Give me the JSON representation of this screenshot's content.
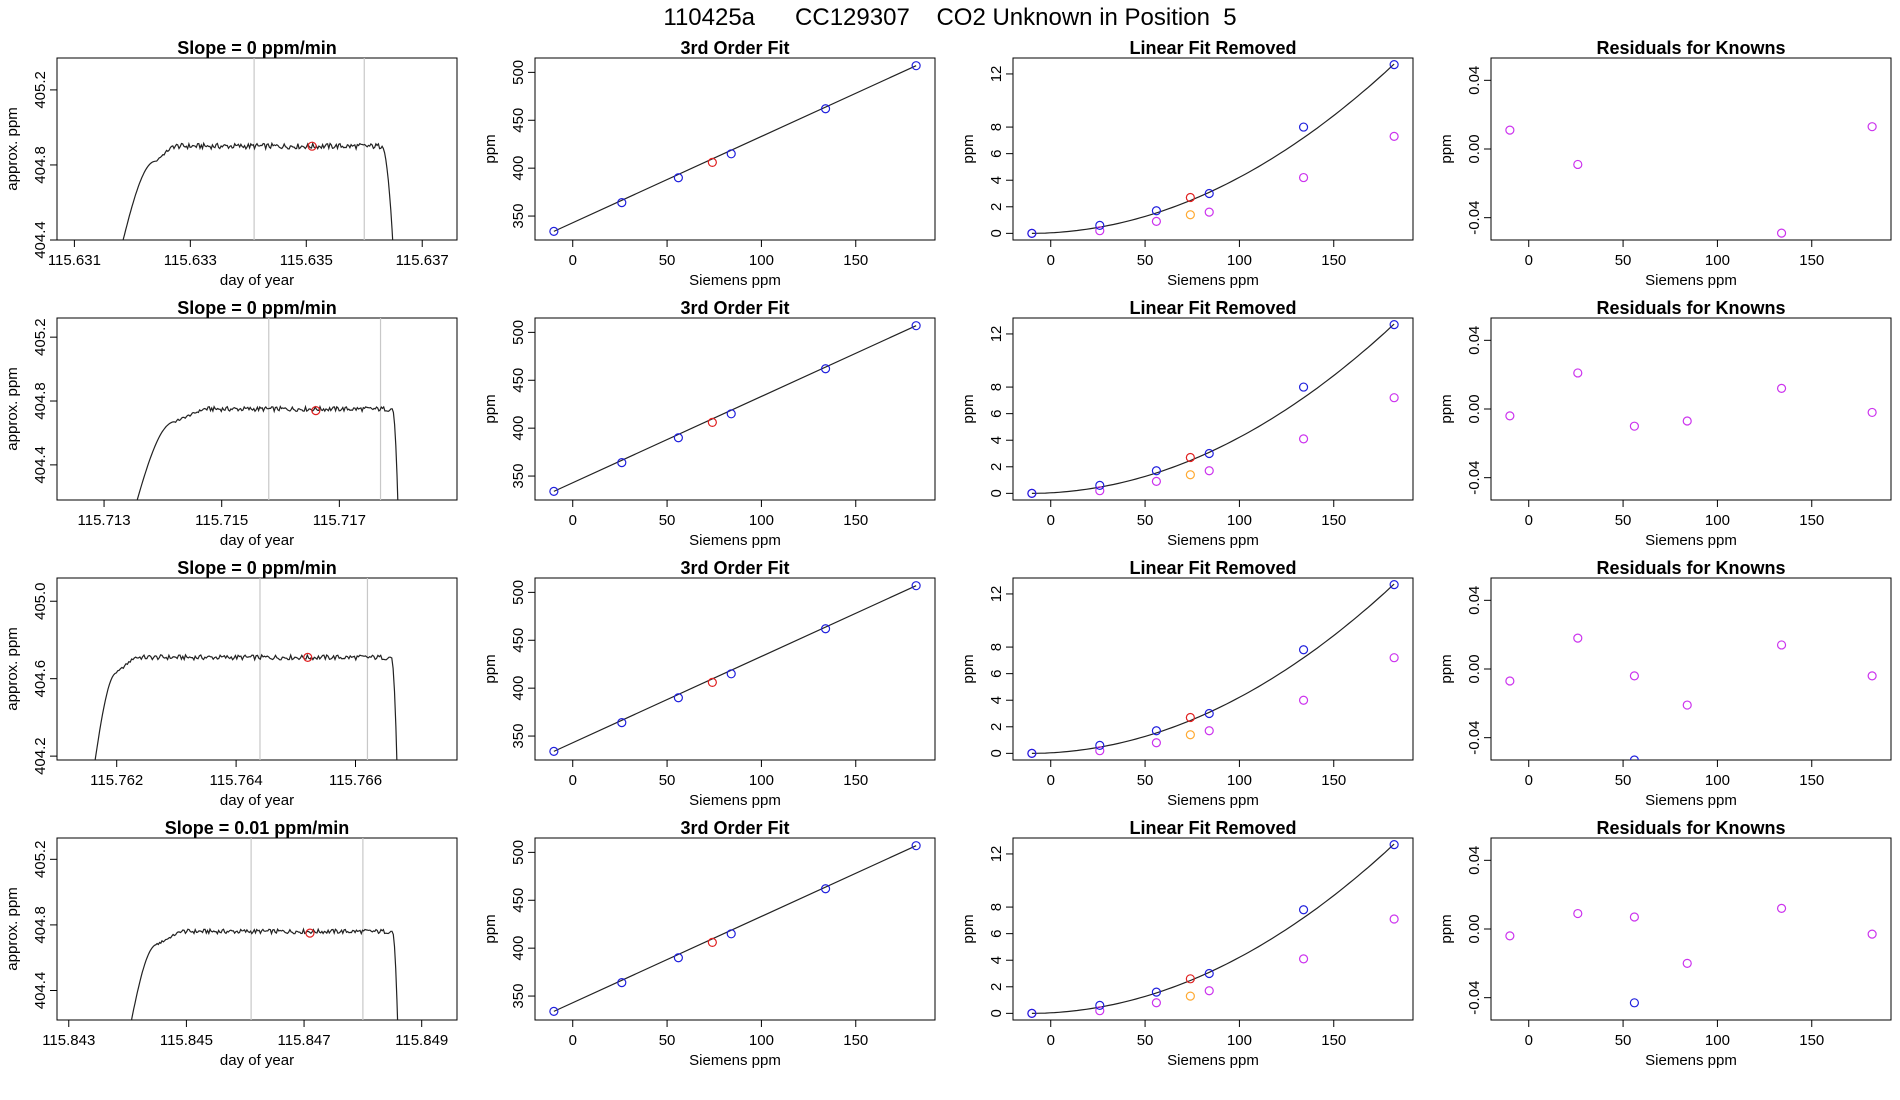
{
  "page": {
    "title": "110425a      CC129307    CO2 Unknown in Position  5"
  },
  "colors": {
    "trace": "#222222",
    "window_lines": "#c8c8c8",
    "unknown_point": "#e02020",
    "known_point": "#2020dd",
    "linear_removed_point": "#cc33ee",
    "unknown_linear_removed_point": "#ffaa33",
    "residual_point": "#cc33ee",
    "fit_line": "#222222",
    "axis": "#000000"
  },
  "chart_data": [
    {
      "id": "r1-time",
      "type": "line",
      "title": "Slope =  0  ppm/min",
      "xlabel": "day of year",
      "ylabel": "approx. ppm",
      "xlim": [
        115.6307,
        115.6376
      ],
      "ylim": [
        404.4,
        405.37
      ],
      "xticks": [
        "115.631",
        "115.633",
        "115.635",
        "115.637"
      ],
      "xtick_values": [
        115.631,
        115.633,
        115.635,
        115.637
      ],
      "yticks": [
        "404.4",
        "404.8",
        "405.2"
      ],
      "ytick_values": [
        404.4,
        404.8,
        405.2
      ],
      "window": [
        115.6341,
        115.636
      ],
      "trace": {
        "start": 115.6318,
        "rise_end": 115.6324,
        "plateau_start": 115.6327,
        "plateau_end": 115.6363,
        "drop_end": 115.6365,
        "baseline": 404.35,
        "level": 404.9,
        "wobble": 0.015
      },
      "marker": {
        "x": 115.6351,
        "y": 404.9
      }
    },
    {
      "id": "r1-cubic",
      "type": "scatter",
      "title": "3rd Order Fit",
      "xlabel": "Siemens ppm",
      "ylabel": "ppm",
      "xlim": [
        -20,
        192
      ],
      "ylim": [
        325,
        515
      ],
      "xticks": [
        "0",
        "50",
        "100",
        "150"
      ],
      "xtick_values": [
        0,
        50,
        100,
        150
      ],
      "yticks": [
        "350",
        "400",
        "450",
        "500"
      ],
      "ytick_values": [
        350,
        400,
        450,
        500
      ],
      "fit_line": {
        "x": [
          -10,
          182
        ],
        "y": [
          334,
          507
        ]
      },
      "knowns": {
        "x": [
          -10,
          26,
          56,
          84,
          134,
          182
        ],
        "y": [
          334,
          364,
          390,
          415,
          462,
          507
        ]
      },
      "unknown": {
        "x": 74,
        "y": 406
      }
    },
    {
      "id": "r1-lin",
      "type": "scatter",
      "title": "Linear Fit Removed",
      "xlabel": "Siemens ppm",
      "ylabel": "ppm",
      "xlim": [
        -20,
        192
      ],
      "ylim": [
        -0.5,
        13.2
      ],
      "xticks": [
        "0",
        "50",
        "100",
        "150"
      ],
      "xtick_values": [
        0,
        50,
        100,
        150
      ],
      "yticks": [
        "0",
        "2",
        "4",
        "6",
        "8",
        "12"
      ],
      "ytick_values": [
        0,
        2,
        4,
        6,
        8,
        12
      ],
      "curve": {
        "x0": -10,
        "x1": 182,
        "a": 0.000342,
        "b": 0.00071,
        "c": 0
      },
      "knowns": {
        "x": [
          -10,
          26,
          56,
          84,
          134,
          182
        ],
        "y": [
          0,
          0.6,
          1.7,
          3.0,
          8.0,
          12.7
        ]
      },
      "knowns_removed": {
        "x": [
          -10,
          26,
          56,
          84,
          134,
          182
        ],
        "y": [
          0,
          0.2,
          0.9,
          1.6,
          4.2,
          7.3
        ]
      },
      "unknown": {
        "x": 74,
        "y": 2.7
      },
      "unknown_removed": {
        "x": 74,
        "y": 1.4
      }
    },
    {
      "id": "r1-res",
      "type": "scatter",
      "title": "Residuals for Knowns",
      "xlabel": "Siemens ppm",
      "ylabel": "ppm",
      "xlim": [
        -20,
        192
      ],
      "ylim": [
        -0.053,
        0.053
      ],
      "xticks": [
        "0",
        "50",
        "100",
        "150"
      ],
      "xtick_values": [
        0,
        50,
        100,
        150
      ],
      "yticks": [
        "-0.04",
        "0.00",
        "0.04"
      ],
      "ytick_values": [
        -0.04,
        0.0,
        0.04
      ],
      "residuals": {
        "x": [
          -10,
          26,
          134,
          182
        ],
        "y": [
          0.011,
          -0.009,
          -0.049,
          0.013
        ]
      },
      "known_residuals": {
        "x": [],
        "y": []
      }
    },
    {
      "id": "r2-time",
      "type": "line",
      "title": "Slope =  0  ppm/min",
      "xlabel": "day of year",
      "ylabel": "approx. ppm",
      "xlim": [
        115.7122,
        115.719
      ],
      "ylim": [
        404.18,
        405.32
      ],
      "xticks": [
        "115.713",
        "115.715",
        "115.717"
      ],
      "xtick_values": [
        115.713,
        115.715,
        115.717
      ],
      "yticks": [
        "404.4",
        "404.8",
        "405.2"
      ],
      "ytick_values": [
        404.4,
        404.8,
        405.2
      ],
      "window": [
        115.7158,
        115.7177
      ],
      "trace": {
        "start": 115.7135,
        "rise_end": 115.7142,
        "plateau_start": 115.7147,
        "plateau_end": 115.7179,
        "drop_end": 115.718,
        "baseline": 404.1,
        "level": 404.75,
        "wobble": 0.015
      },
      "marker": {
        "x": 115.7166,
        "y": 404.74
      }
    },
    {
      "id": "r2-cubic",
      "type": "scatter",
      "title": "3rd Order Fit",
      "xlabel": "Siemens ppm",
      "ylabel": "ppm",
      "xlim": [
        -20,
        192
      ],
      "ylim": [
        325,
        515
      ],
      "xticks": [
        "0",
        "50",
        "100",
        "150"
      ],
      "xtick_values": [
        0,
        50,
        100,
        150
      ],
      "yticks": [
        "350",
        "400",
        "450",
        "500"
      ],
      "ytick_values": [
        350,
        400,
        450,
        500
      ],
      "fit_line": {
        "x": [
          -10,
          182
        ],
        "y": [
          334,
          507
        ]
      },
      "knowns": {
        "x": [
          -10,
          26,
          56,
          84,
          134,
          182
        ],
        "y": [
          334,
          364,
          390,
          415,
          462,
          507
        ]
      },
      "unknown": {
        "x": 74,
        "y": 406
      }
    },
    {
      "id": "r2-lin",
      "type": "scatter",
      "title": "Linear Fit Removed",
      "xlabel": "Siemens ppm",
      "ylabel": "ppm",
      "xlim": [
        -20,
        192
      ],
      "ylim": [
        -0.5,
        13.2
      ],
      "xticks": [
        "0",
        "50",
        "100",
        "150"
      ],
      "xtick_values": [
        0,
        50,
        100,
        150
      ],
      "yticks": [
        "0",
        "2",
        "4",
        "6",
        "8",
        "12"
      ],
      "ytick_values": [
        0,
        2,
        4,
        6,
        8,
        12
      ],
      "curve": {
        "x0": -10,
        "x1": 182,
        "a": 0.000342,
        "b": 0.00071,
        "c": 0
      },
      "knowns": {
        "x": [
          -10,
          26,
          56,
          84,
          134,
          182
        ],
        "y": [
          0,
          0.6,
          1.7,
          3.0,
          8.0,
          12.7
        ]
      },
      "knowns_removed": {
        "x": [
          -10,
          26,
          56,
          84,
          134,
          182
        ],
        "y": [
          0,
          0.2,
          0.9,
          1.7,
          4.1,
          7.2
        ]
      },
      "unknown": {
        "x": 74,
        "y": 2.7
      },
      "unknown_removed": {
        "x": 74,
        "y": 1.4
      }
    },
    {
      "id": "r2-res",
      "type": "scatter",
      "title": "Residuals for Knowns",
      "xlabel": "Siemens ppm",
      "ylabel": "ppm",
      "xlim": [
        -20,
        192
      ],
      "ylim": [
        -0.053,
        0.053
      ],
      "xticks": [
        "0",
        "50",
        "100",
        "150"
      ],
      "xtick_values": [
        0,
        50,
        100,
        150
      ],
      "yticks": [
        "-0.04",
        "0.00",
        "0.04"
      ],
      "ytick_values": [
        -0.04,
        0.0,
        0.04
      ],
      "residuals": {
        "x": [
          -10,
          26,
          56,
          84,
          134,
          182
        ],
        "y": [
          -0.004,
          0.021,
          -0.01,
          -0.007,
          0.012,
          -0.002
        ]
      },
      "known_residuals": {
        "x": [],
        "y": []
      }
    },
    {
      "id": "r3-time",
      "type": "line",
      "title": "Slope =  0  ppm/min",
      "xlabel": "day of year",
      "ylabel": "approx. ppm",
      "xlim": [
        115.761,
        115.7677
      ],
      "ylim": [
        404.18,
        405.12
      ],
      "xticks": [
        "115.762",
        "115.764",
        "115.766"
      ],
      "xtick_values": [
        115.762,
        115.764,
        115.766
      ],
      "yticks": [
        "404.2",
        "404.6",
        "405.0"
      ],
      "ytick_values": [
        404.2,
        404.6,
        405.0
      ],
      "window": [
        115.7644,
        115.7662
      ],
      "trace": {
        "start": 115.7616,
        "rise_end": 115.762,
        "plateau_start": 115.7623,
        "plateau_end": 115.7666,
        "drop_end": 115.7667,
        "baseline": 404.1,
        "level": 404.71,
        "wobble": 0.013
      },
      "marker": {
        "x": 115.7652,
        "y": 404.71
      }
    },
    {
      "id": "r3-cubic",
      "type": "scatter",
      "title": "3rd Order Fit",
      "xlabel": "Siemens ppm",
      "ylabel": "ppm",
      "xlim": [
        -20,
        192
      ],
      "ylim": [
        325,
        515
      ],
      "xticks": [
        "0",
        "50",
        "100",
        "150"
      ],
      "xtick_values": [
        0,
        50,
        100,
        150
      ],
      "yticks": [
        "350",
        "400",
        "450",
        "500"
      ],
      "ytick_values": [
        350,
        400,
        450,
        500
      ],
      "fit_line": {
        "x": [
          -10,
          182
        ],
        "y": [
          334,
          507
        ]
      },
      "knowns": {
        "x": [
          -10,
          26,
          56,
          84,
          134,
          182
        ],
        "y": [
          334,
          364,
          390,
          415,
          462,
          507
        ]
      },
      "unknown": {
        "x": 74,
        "y": 406
      }
    },
    {
      "id": "r3-lin",
      "type": "scatter",
      "title": "Linear Fit Removed",
      "xlabel": "Siemens ppm",
      "ylabel": "ppm",
      "xlim": [
        -20,
        192
      ],
      "ylim": [
        -0.5,
        13.2
      ],
      "xticks": [
        "0",
        "50",
        "100",
        "150"
      ],
      "xtick_values": [
        0,
        50,
        100,
        150
      ],
      "yticks": [
        "0",
        "2",
        "4",
        "6",
        "8",
        "12"
      ],
      "ytick_values": [
        0,
        2,
        4,
        6,
        8,
        12
      ],
      "curve": {
        "x0": -10,
        "x1": 182,
        "a": 0.000342,
        "b": 0.00071,
        "c": 0
      },
      "knowns": {
        "x": [
          -10,
          26,
          56,
          84,
          134,
          182
        ],
        "y": [
          0,
          0.6,
          1.7,
          3.0,
          7.8,
          12.7
        ]
      },
      "knowns_removed": {
        "x": [
          -10,
          26,
          56,
          84,
          134,
          182
        ],
        "y": [
          0,
          0.2,
          0.8,
          1.7,
          4.0,
          7.2
        ]
      },
      "unknown": {
        "x": 74,
        "y": 2.7
      },
      "unknown_removed": {
        "x": 74,
        "y": 1.4
      }
    },
    {
      "id": "r3-res",
      "type": "scatter",
      "title": "Residuals for Knowns",
      "xlabel": "Siemens ppm",
      "ylabel": "ppm",
      "xlim": [
        -20,
        192
      ],
      "ylim": [
        -0.053,
        0.053
      ],
      "xticks": [
        "0",
        "50",
        "100",
        "150"
      ],
      "xtick_values": [
        0,
        50,
        100,
        150
      ],
      "yticks": [
        "-0.04",
        "0.00",
        "0.04"
      ],
      "ytick_values": [
        -0.04,
        0.0,
        0.04
      ],
      "residuals": {
        "x": [
          -10,
          26,
          56,
          84,
          134,
          182
        ],
        "y": [
          -0.007,
          0.018,
          -0.004,
          -0.021,
          0.014,
          -0.004
        ]
      },
      "known_residuals": {
        "x": [
          56
        ],
        "y": [
          -0.053
        ]
      }
    },
    {
      "id": "r4-time",
      "type": "line",
      "title": "Slope =  0.01  ppm/min",
      "xlabel": "day of year",
      "ylabel": "approx. ppm",
      "xlim": [
        115.8428,
        115.8496
      ],
      "ylim": [
        404.22,
        405.33
      ],
      "xticks": [
        "115.843",
        "115.845",
        "115.847",
        "115.849"
      ],
      "xtick_values": [
        115.843,
        115.845,
        115.847,
        115.849
      ],
      "yticks": [
        "404.4",
        "404.8",
        "405.2"
      ],
      "ytick_values": [
        404.4,
        404.8,
        405.2
      ],
      "window": [
        115.8461,
        115.848
      ],
      "trace": {
        "start": 115.844,
        "rise_end": 115.8445,
        "plateau_start": 115.8449,
        "plateau_end": 115.8485,
        "drop_end": 115.8486,
        "baseline": 404.1,
        "level": 404.76,
        "wobble": 0.014
      },
      "marker": {
        "x": 115.8471,
        "y": 404.75
      }
    },
    {
      "id": "r4-cubic",
      "type": "scatter",
      "title": "3rd Order Fit",
      "xlabel": "Siemens ppm",
      "ylabel": "ppm",
      "xlim": [
        -20,
        192
      ],
      "ylim": [
        325,
        515
      ],
      "xticks": [
        "0",
        "50",
        "100",
        "150"
      ],
      "xtick_values": [
        0,
        50,
        100,
        150
      ],
      "yticks": [
        "350",
        "400",
        "450",
        "500"
      ],
      "ytick_values": [
        350,
        400,
        450,
        500
      ],
      "fit_line": {
        "x": [
          -10,
          182
        ],
        "y": [
          334,
          507
        ]
      },
      "knowns": {
        "x": [
          -10,
          26,
          56,
          84,
          134,
          182
        ],
        "y": [
          334,
          364,
          390,
          415,
          462,
          507
        ]
      },
      "unknown": {
        "x": 74,
        "y": 406
      }
    },
    {
      "id": "r4-lin",
      "type": "scatter",
      "title": "Linear Fit Removed",
      "xlabel": "Siemens ppm",
      "ylabel": "ppm",
      "xlim": [
        -20,
        192
      ],
      "ylim": [
        -0.5,
        13.2
      ],
      "xticks": [
        "0",
        "50",
        "100",
        "150"
      ],
      "xtick_values": [
        0,
        50,
        100,
        150
      ],
      "yticks": [
        "0",
        "2",
        "4",
        "6",
        "8",
        "12"
      ],
      "ytick_values": [
        0,
        2,
        4,
        6,
        8,
        12
      ],
      "curve": {
        "x0": -10,
        "x1": 182,
        "a": 0.000342,
        "b": 0.00071,
        "c": 0
      },
      "knowns": {
        "x": [
          -10,
          26,
          56,
          84,
          134,
          182
        ],
        "y": [
          0,
          0.6,
          1.6,
          3.0,
          7.8,
          12.7
        ]
      },
      "knowns_removed": {
        "x": [
          -10,
          26,
          56,
          84,
          134,
          182
        ],
        "y": [
          0,
          0.2,
          0.8,
          1.7,
          4.1,
          7.1
        ]
      },
      "unknown": {
        "x": 74,
        "y": 2.6
      },
      "unknown_removed": {
        "x": 74,
        "y": 1.3
      }
    },
    {
      "id": "r4-res",
      "type": "scatter",
      "title": "Residuals for Knowns",
      "xlabel": "Siemens ppm",
      "ylabel": "ppm",
      "xlim": [
        -20,
        192
      ],
      "ylim": [
        -0.053,
        0.053
      ],
      "xticks": [
        "0",
        "50",
        "100",
        "150"
      ],
      "xtick_values": [
        0,
        50,
        100,
        150
      ],
      "yticks": [
        "-0.04",
        "0.00",
        "0.04"
      ],
      "ytick_values": [
        -0.04,
        0.0,
        0.04
      ],
      "residuals": {
        "x": [
          -10,
          26,
          56,
          84,
          134,
          182
        ],
        "y": [
          -0.004,
          0.009,
          0.007,
          -0.02,
          0.012,
          -0.003
        ]
      },
      "known_residuals": {
        "x": [
          56
        ],
        "y": [
          -0.043
        ]
      }
    }
  ]
}
